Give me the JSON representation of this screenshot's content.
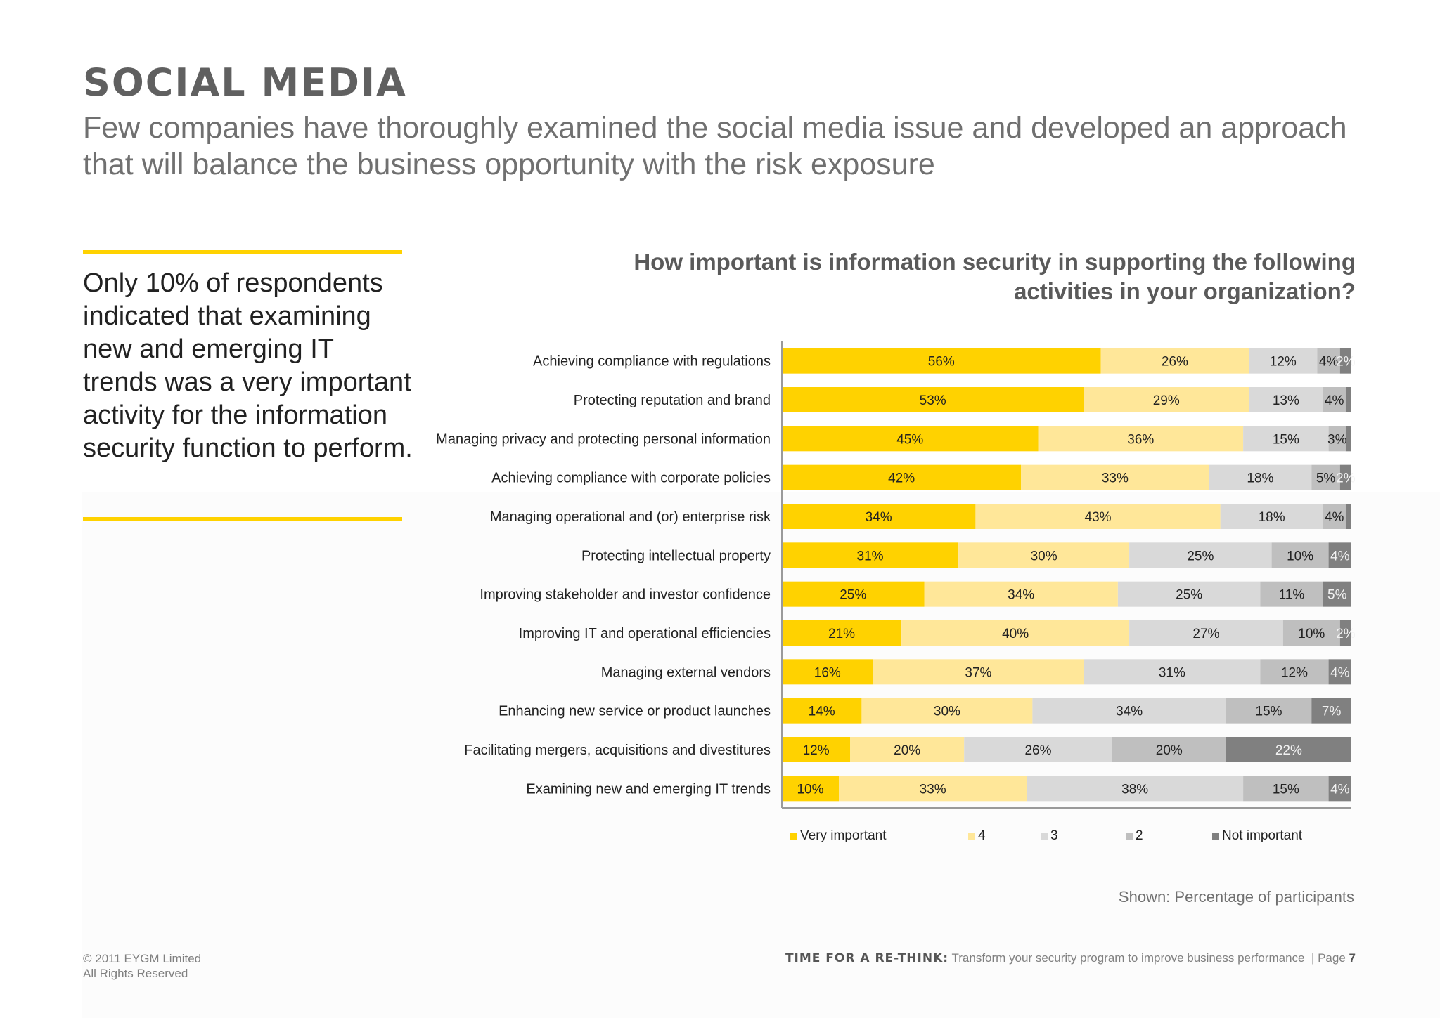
{
  "slide": {
    "title": "SOCIAL MEDIA",
    "subtitle": "Few companies have thoroughly examined the social media issue and developed an approach that will balance the business opportunity with the risk exposure",
    "callout": "Only 10% of respondents indicated that examining new and emerging IT trends was a very important activity for the information security function to perform.",
    "source_note": "Shown: Percentage of participants",
    "copyright_line1": "© 2011 EYGM Limited",
    "copyright_line2": "All Rights Reserved",
    "footer_tagline": "Time for a re-think:",
    "footer_text": "Transform your security program to improve business performance",
    "footer_page_label": "| Page",
    "footer_page_number": "7"
  },
  "colors": {
    "accent": "#ffd200",
    "text_gray": "#707070"
  },
  "chart_data": {
    "type": "bar",
    "orientation": "horizontal",
    "stacked": true,
    "title": "How important is information security in supporting the following activities in your organization?",
    "categories": [
      "Achieving compliance with regulations",
      "Protecting reputation and brand",
      "Managing privacy and protecting personal information",
      "Achieving compliance with corporate policies",
      "Managing operational and (or) enterprise risk",
      "Protecting intellectual property",
      "Improving stakeholder and investor confidence",
      "Improving IT and operational efficiencies",
      "Managing external vendors",
      "Enhancing new service or product launches",
      "Facilitating mergers, acquisitions and divestitures",
      "Examining new and emerging IT trends"
    ],
    "series": [
      {
        "name": "Very important",
        "color": "#ffd200",
        "values": [
          56,
          53,
          45,
          42,
          34,
          31,
          25,
          21,
          16,
          14,
          12,
          10
        ]
      },
      {
        "name": "4",
        "color": "#ffe799",
        "values": [
          26,
          29,
          36,
          33,
          43,
          30,
          34,
          40,
          37,
          30,
          20,
          33
        ]
      },
      {
        "name": "3",
        "color": "#d9d9d9",
        "values": [
          12,
          13,
          15,
          18,
          18,
          25,
          25,
          27,
          31,
          34,
          26,
          38
        ]
      },
      {
        "name": "2",
        "color": "#bfbfbf",
        "values": [
          4,
          4,
          3,
          5,
          4,
          10,
          11,
          10,
          12,
          15,
          20,
          15
        ]
      },
      {
        "name": "Not important",
        "color": "#808080",
        "values": [
          2,
          1,
          1,
          2,
          1,
          4,
          5,
          2,
          4,
          7,
          22,
          4
        ]
      }
    ],
    "data_labels": [
      [
        "56%",
        "26%",
        "12%",
        "4%",
        "2%"
      ],
      [
        "53%",
        "29%",
        "13%",
        "4%",
        ""
      ],
      [
        "45%",
        "36%",
        "15%",
        "3%",
        ""
      ],
      [
        "42%",
        "33%",
        "18%",
        "5%",
        "2%"
      ],
      [
        "34%",
        "43%",
        "18%",
        "4%",
        ""
      ],
      [
        "31%",
        "30%",
        "25%",
        "10%",
        "4%"
      ],
      [
        "25%",
        "34%",
        "25%",
        "11%",
        "5%"
      ],
      [
        "21%",
        "40%",
        "27%",
        "10%",
        "2%"
      ],
      [
        "16%",
        "37%",
        "31%",
        "12%",
        "4%"
      ],
      [
        "14%",
        "30%",
        "34%",
        "15%",
        "7%"
      ],
      [
        "12%",
        "20%",
        "26%",
        "20%",
        "22%"
      ],
      [
        "10%",
        "33%",
        "38%",
        "15%",
        "4%"
      ]
    ],
    "xlim": [
      0,
      100
    ],
    "legend_position": "bottom",
    "grid": false
  }
}
